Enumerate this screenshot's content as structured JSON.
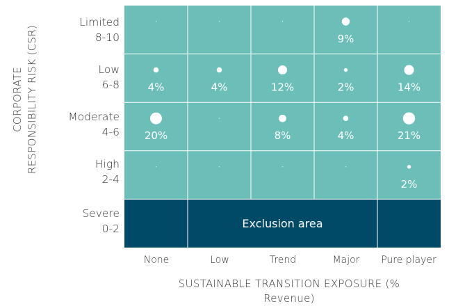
{
  "chart_data": {
    "type": "bubble-matrix",
    "ylabel_lines": [
      "CORPORATE",
      "RESPONSIBILITY RISK (CSR)"
    ],
    "xlabel_lines": [
      "SUSTAINABLE TRANSITION EXPOSURE (%",
      "Revenue)"
    ],
    "rows": [
      {
        "name": "Limited",
        "range": "8-10"
      },
      {
        "name": "Low",
        "range": "6-8"
      },
      {
        "name": "Moderate",
        "range": "4-6"
      },
      {
        "name": "High",
        "range": "2-4"
      },
      {
        "name": "Severe",
        "range": "0-2"
      }
    ],
    "columns": [
      "None",
      "Low",
      "Trend",
      "Major",
      "Pure player"
    ],
    "values": [
      [
        0,
        0,
        0,
        9,
        0
      ],
      [
        4,
        4,
        12,
        2,
        14
      ],
      [
        20,
        0,
        8,
        4,
        21
      ],
      [
        0,
        0,
        0,
        0,
        2
      ]
    ],
    "value_suffix": "%",
    "exclusion_label": "Exclusion area",
    "colors": {
      "cell": "#6bbfb8",
      "exclusion": "#004a68",
      "grid": "#ffffff",
      "bubble": "#ffffff"
    }
  }
}
